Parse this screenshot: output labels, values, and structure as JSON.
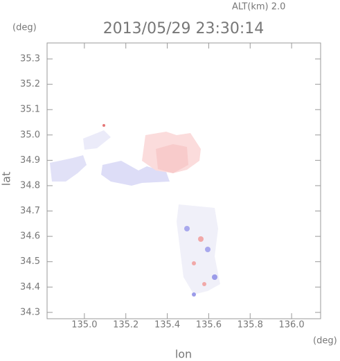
{
  "chart_data": {
    "type": "map",
    "title": "2013/05/29 23:30:14",
    "subtitle": "ALT(km) 2.0",
    "x_label": "lon",
    "y_label": "lat",
    "x_unit": "(deg)",
    "y_unit": "(deg)",
    "xlim": [
      134.82,
      136.14
    ],
    "ylim": [
      34.275,
      35.363
    ],
    "xticks": [
      {
        "value": 135,
        "label": "135.0"
      },
      135.2,
      135.4,
      135.6,
      135.8,
      {
        "value": 136,
        "label": "136.0"
      }
    ],
    "yticks": [
      35.3,
      35.2,
      35.1,
      {
        "value": 35,
        "label": "35.0"
      },
      34.9,
      34.8,
      34.7,
      34.6,
      34.5,
      34.4,
      34.3
    ]
  }
}
